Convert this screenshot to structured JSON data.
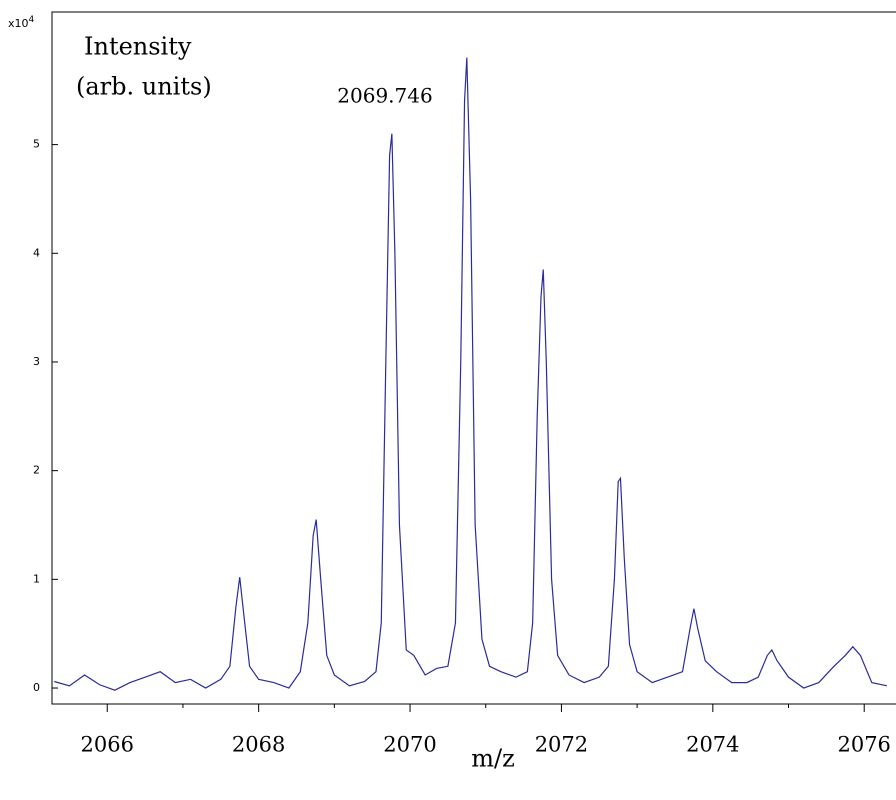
{
  "chart_data": {
    "type": "line",
    "y_label": [
      "Intensity",
      "(arb. units)"
    ],
    "x_label": "m/z",
    "y_multiplier": {
      "base": "x10",
      "exponent": "4"
    },
    "annotation": "2069.746",
    "series": [
      {
        "color": "#2b2b9a",
        "x": [
          2065.3,
          2065.5,
          2065.7,
          2065.9,
          2066.1,
          2066.3,
          2066.5,
          2066.7,
          2066.9,
          2067.1,
          2067.3,
          2067.5,
          2067.62,
          2067.7,
          2067.75,
          2067.8,
          2067.88,
          2068.0,
          2068.2,
          2068.4,
          2068.55,
          2068.65,
          2068.72,
          2068.76,
          2068.82,
          2068.9,
          2069.0,
          2069.2,
          2069.4,
          2069.55,
          2069.62,
          2069.68,
          2069.73,
          2069.76,
          2069.8,
          2069.86,
          2069.95,
          2070.05,
          2070.2,
          2070.35,
          2070.5,
          2070.6,
          2070.67,
          2070.72,
          2070.75,
          2070.8,
          2070.86,
          2070.95,
          2071.05,
          2071.2,
          2071.4,
          2071.55,
          2071.62,
          2071.68,
          2071.73,
          2071.76,
          2071.8,
          2071.87,
          2071.95,
          2072.1,
          2072.3,
          2072.5,
          2072.62,
          2072.7,
          2072.75,
          2072.78,
          2072.83,
          2072.9,
          2073.0,
          2073.2,
          2073.4,
          2073.6,
          2073.7,
          2073.75,
          2073.8,
          2073.9,
          2074.05,
          2074.25,
          2074.45,
          2074.6,
          2074.72,
          2074.78,
          2074.85,
          2075.0,
          2075.2,
          2075.4,
          2075.6,
          2075.75,
          2075.85,
          2075.95,
          2076.1,
          2076.3
        ],
        "values": [
          0.06,
          0.02,
          0.12,
          0.03,
          -0.02,
          0.05,
          0.1,
          0.15,
          0.05,
          0.08,
          0.0,
          0.08,
          0.2,
          0.75,
          1.02,
          0.7,
          0.2,
          0.08,
          0.05,
          0.0,
          0.15,
          0.6,
          1.4,
          1.55,
          1.0,
          0.3,
          0.12,
          0.02,
          0.06,
          0.15,
          0.6,
          3.0,
          4.9,
          5.1,
          4.0,
          1.5,
          0.35,
          0.3,
          0.12,
          0.18,
          0.2,
          0.6,
          3.0,
          5.4,
          5.8,
          4.5,
          1.5,
          0.45,
          0.2,
          0.15,
          0.1,
          0.15,
          0.6,
          2.5,
          3.6,
          3.85,
          3.0,
          1.0,
          0.3,
          0.12,
          0.05,
          0.1,
          0.2,
          1.0,
          1.9,
          1.93,
          1.2,
          0.4,
          0.15,
          0.05,
          0.1,
          0.15,
          0.55,
          0.73,
          0.55,
          0.25,
          0.15,
          0.05,
          0.05,
          0.1,
          0.3,
          0.35,
          0.25,
          0.1,
          0.0,
          0.05,
          0.2,
          0.3,
          0.38,
          0.3,
          0.05,
          0.02
        ]
      }
    ],
    "xlim": [
      2065.27,
      2076.42
    ],
    "ylim": [
      -0.147,
      6.22
    ],
    "xticks": [
      2066,
      2068,
      2070,
      2072,
      2074,
      2076
    ],
    "xticks_minor": [
      2067,
      2069,
      2071,
      2073,
      2075
    ],
    "yticks": [
      0,
      1,
      2,
      3,
      4,
      5
    ]
  }
}
